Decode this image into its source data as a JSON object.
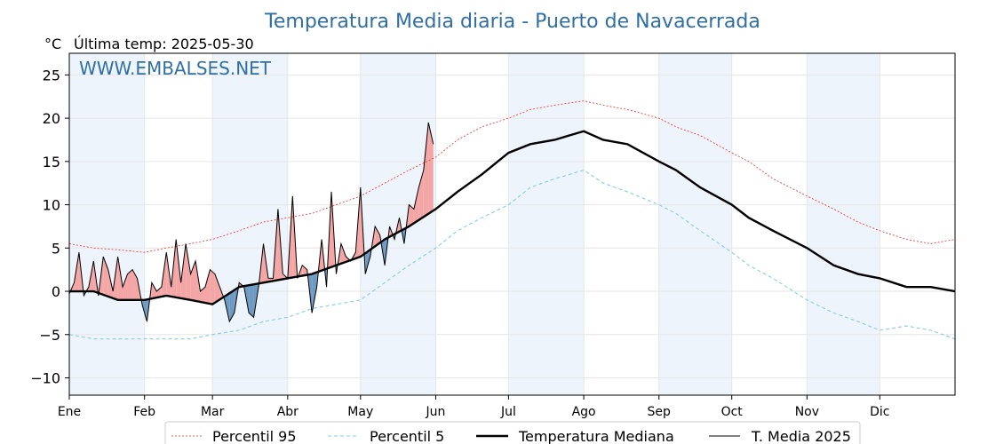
{
  "chart_data": {
    "type": "line",
    "title": "Temperatura Media diaria - Puerto de Navacerrada",
    "unit_label": "°C",
    "last_temp_label": "Última temp: 2025-05-30",
    "watermark": "WWW.EMBALSES.NET",
    "ylim": [
      -12,
      27.5
    ],
    "yticks": [
      25,
      20,
      15,
      10,
      5,
      0,
      -5,
      -10
    ],
    "ytick_labels": [
      "25",
      "20",
      "15",
      "10",
      "5",
      "0",
      "−5",
      "−10"
    ],
    "xlim_day": [
      0,
      365
    ],
    "months": [
      {
        "label": "Ene",
        "day": 0
      },
      {
        "label": "Feb",
        "day": 31
      },
      {
        "label": "Mar",
        "day": 59
      },
      {
        "label": "Abr",
        "day": 90
      },
      {
        "label": "May",
        "day": 120
      },
      {
        "label": "Jun",
        "day": 151
      },
      {
        "label": "Jul",
        "day": 181
      },
      {
        "label": "Ago",
        "day": 212
      },
      {
        "label": "Sep",
        "day": 243
      },
      {
        "label": "Oct",
        "day": 273
      },
      {
        "label": "Nov",
        "day": 304
      },
      {
        "label": "Dic",
        "day": 334
      }
    ],
    "shaded_months": [
      0,
      2,
      4,
      6,
      8,
      10
    ],
    "colors": {
      "p95": "#e8302a",
      "p5": "#8ccbe0",
      "median": "#000000",
      "t2025": "#000000",
      "above": "#f4a6a6",
      "below": "#6f9ac2",
      "shade": "#eef4fb",
      "grid": "#e6e6e6"
    },
    "series": [
      {
        "name": "Percentil 95",
        "x": [
          0,
          10,
          20,
          31,
          40,
          50,
          59,
          70,
          80,
          90,
          100,
          110,
          120,
          130,
          140,
          151,
          160,
          170,
          181,
          190,
          200,
          212,
          220,
          230,
          243,
          250,
          260,
          273,
          280,
          290,
          304,
          315,
          325,
          334,
          345,
          355,
          365
        ],
        "y": [
          5.5,
          5.0,
          4.8,
          4.5,
          5.0,
          5.5,
          6.0,
          7.0,
          8.0,
          8.5,
          9.0,
          10.0,
          11.0,
          12.5,
          14.0,
          15.5,
          17.5,
          19.0,
          20.0,
          21.0,
          21.5,
          22.0,
          21.5,
          21.0,
          20.0,
          19.0,
          18.0,
          16.0,
          15.0,
          13.0,
          11.0,
          9.5,
          8.0,
          7.0,
          6.0,
          5.5,
          6.0
        ]
      },
      {
        "name": "Percentil 5",
        "x": [
          0,
          10,
          20,
          31,
          40,
          50,
          59,
          70,
          80,
          90,
          100,
          110,
          120,
          130,
          140,
          151,
          160,
          170,
          181,
          190,
          200,
          212,
          220,
          230,
          243,
          250,
          260,
          273,
          280,
          290,
          304,
          315,
          325,
          334,
          345,
          355,
          365
        ],
        "y": [
          -5.0,
          -5.5,
          -5.5,
          -5.5,
          -5.5,
          -5.5,
          -5.0,
          -4.5,
          -3.5,
          -3.0,
          -2.0,
          -1.5,
          -1.0,
          1.0,
          3.0,
          5.0,
          7.0,
          8.5,
          10.0,
          12.0,
          13.0,
          14.0,
          12.5,
          11.5,
          10.0,
          9.0,
          7.0,
          4.5,
          3.0,
          1.5,
          -1.0,
          -2.5,
          -3.5,
          -4.5,
          -4.0,
          -4.5,
          -5.5
        ]
      },
      {
        "name": "Temperatura Mediana",
        "x": [
          0,
          10,
          20,
          31,
          40,
          50,
          59,
          70,
          80,
          90,
          100,
          110,
          120,
          130,
          140,
          151,
          160,
          170,
          181,
          190,
          200,
          212,
          220,
          230,
          243,
          250,
          260,
          273,
          280,
          290,
          304,
          315,
          325,
          334,
          345,
          355,
          365
        ],
        "y": [
          0.0,
          0.0,
          -1.0,
          -1.0,
          -0.5,
          -1.0,
          -1.5,
          0.5,
          1.0,
          1.5,
          2.0,
          3.0,
          4.0,
          6.0,
          7.5,
          9.5,
          11.5,
          13.5,
          16.0,
          17.0,
          17.5,
          18.5,
          17.5,
          17.0,
          15.0,
          14.0,
          12.0,
          10.0,
          8.5,
          7.0,
          5.0,
          3.0,
          2.0,
          1.5,
          0.5,
          0.5,
          0.0
        ]
      },
      {
        "name": "T. Media 2025",
        "x": [
          0,
          2,
          4,
          6,
          8,
          10,
          12,
          14,
          16,
          18,
          20,
          22,
          24,
          26,
          28,
          30,
          32,
          34,
          36,
          38,
          40,
          42,
          44,
          46,
          48,
          50,
          52,
          54,
          56,
          58,
          60,
          62,
          64,
          66,
          68,
          70,
          72,
          74,
          76,
          78,
          80,
          82,
          84,
          86,
          88,
          90,
          92,
          94,
          96,
          98,
          100,
          102,
          104,
          106,
          108,
          110,
          112,
          114,
          116,
          118,
          120,
          122,
          124,
          126,
          128,
          130,
          132,
          134,
          136,
          138,
          140,
          142,
          144,
          146,
          148,
          150
        ],
        "y": [
          -0.3,
          1.0,
          4.5,
          -0.5,
          0.5,
          3.5,
          -0.5,
          4.0,
          2.5,
          0.0,
          4.0,
          0.5,
          2.0,
          2.5,
          1.5,
          -1.5,
          -3.5,
          1.0,
          0.0,
          0.5,
          4.5,
          0.5,
          6.0,
          1.0,
          5.5,
          2.0,
          3.5,
          0.0,
          0.5,
          2.5,
          2.0,
          0.5,
          -1.0,
          -3.5,
          -2.5,
          1.0,
          0.5,
          -2.5,
          -3.0,
          0.5,
          5.5,
          1.5,
          1.5,
          9.5,
          2.0,
          1.5,
          11.0,
          1.5,
          3.0,
          2.5,
          -2.5,
          0.5,
          6.0,
          0.5,
          11.5,
          2.0,
          5.5,
          4.0,
          3.5,
          4.5,
          12.0,
          2.0,
          4.0,
          7.5,
          6.5,
          3.0,
          7.5,
          6.0,
          8.5,
          5.5,
          10.0,
          9.5,
          12.0,
          14.0,
          19.5,
          17.0
        ]
      }
    ],
    "legend": {
      "placement": "bottom-center",
      "entries": [
        {
          "label": "Percentil 95",
          "series": 0
        },
        {
          "label": "Percentil 5",
          "series": 1
        },
        {
          "label": "Temperatura Mediana",
          "series": 2
        },
        {
          "label": "T. Media 2025",
          "series": 3
        }
      ]
    }
  }
}
